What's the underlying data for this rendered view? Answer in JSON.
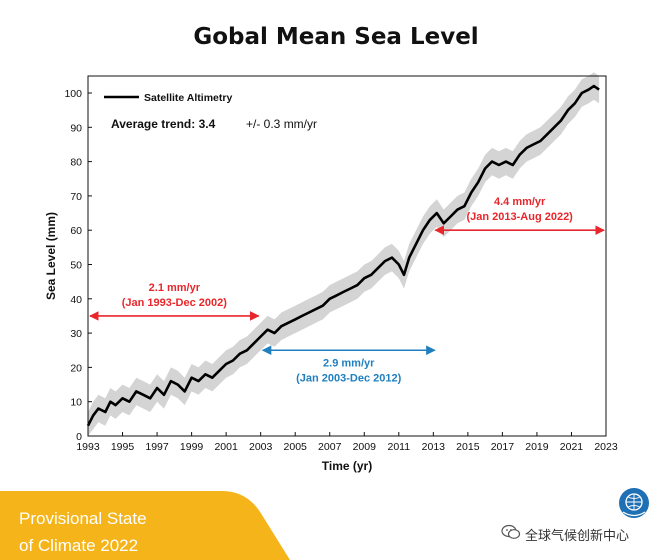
{
  "title": "Gobal Mean Sea Level",
  "legend": {
    "label": "Satellite Altimetry",
    "trend_label": "Average trend: 3.4",
    "trend_error": "+/- 0.3 mm/yr"
  },
  "annotations": [
    {
      "rate": "2.1 mm/yr",
      "period": "(Jan 1993-Dec 2002)",
      "x_start": 1993,
      "x_end": 2003,
      "y": 35,
      "color": "#e8262b"
    },
    {
      "rate": "2.9 mm/yr",
      "period": "(Jan 2003-Dec 2012)",
      "x_start": 2003,
      "x_end": 2013.2,
      "y": 25,
      "color": "#1f7fbf"
    },
    {
      "rate": "4.4 mm/yr",
      "period": "(Jan 2013-Aug 2022)",
      "x_start": 2013,
      "x_end": 2023,
      "y": 60,
      "color": "#e8262b"
    }
  ],
  "chart_data": {
    "type": "line",
    "title": "Gobal Mean Sea Level",
    "xlabel": "Time (yr)",
    "ylabel": "Sea Level (mm)",
    "xlim": [
      1993,
      2023
    ],
    "ylim": [
      0,
      105
    ],
    "xticks": [
      1993,
      1995,
      1997,
      1999,
      2001,
      2003,
      2005,
      2007,
      2009,
      2011,
      2013,
      2015,
      2017,
      2019,
      2021,
      2023
    ],
    "yticks": [
      0,
      10,
      20,
      30,
      40,
      50,
      60,
      70,
      80,
      90,
      100
    ],
    "uncertainty_band_mm": 4,
    "series": [
      {
        "name": "Satellite Altimetry",
        "color": "#000000",
        "points": [
          [
            1993.0,
            3
          ],
          [
            1993.3,
            6
          ],
          [
            1993.6,
            8
          ],
          [
            1994.0,
            7
          ],
          [
            1994.3,
            10
          ],
          [
            1994.6,
            9
          ],
          [
            1995.0,
            11
          ],
          [
            1995.4,
            10
          ],
          [
            1995.8,
            13
          ],
          [
            1996.2,
            12
          ],
          [
            1996.6,
            11
          ],
          [
            1997.0,
            14
          ],
          [
            1997.4,
            12
          ],
          [
            1997.8,
            16
          ],
          [
            1998.2,
            15
          ],
          [
            1998.6,
            13
          ],
          [
            1999.0,
            17
          ],
          [
            1999.4,
            16
          ],
          [
            1999.8,
            18
          ],
          [
            2000.2,
            17
          ],
          [
            2000.6,
            19
          ],
          [
            2001.0,
            21
          ],
          [
            2001.4,
            22
          ],
          [
            2001.8,
            24
          ],
          [
            2002.2,
            25
          ],
          [
            2002.6,
            27
          ],
          [
            2003.0,
            29
          ],
          [
            2003.4,
            31
          ],
          [
            2003.8,
            30
          ],
          [
            2004.2,
            32
          ],
          [
            2004.6,
            33
          ],
          [
            2005.0,
            34
          ],
          [
            2005.4,
            35
          ],
          [
            2005.8,
            36
          ],
          [
            2006.2,
            37
          ],
          [
            2006.6,
            38
          ],
          [
            2007.0,
            40
          ],
          [
            2007.4,
            41
          ],
          [
            2007.8,
            42
          ],
          [
            2008.2,
            43
          ],
          [
            2008.6,
            44
          ],
          [
            2009.0,
            46
          ],
          [
            2009.4,
            47
          ],
          [
            2009.8,
            49
          ],
          [
            2010.2,
            51
          ],
          [
            2010.6,
            52
          ],
          [
            2011.0,
            50
          ],
          [
            2011.3,
            47
          ],
          [
            2011.6,
            52
          ],
          [
            2012.0,
            56
          ],
          [
            2012.4,
            60
          ],
          [
            2012.8,
            63
          ],
          [
            2013.2,
            65
          ],
          [
            2013.6,
            62
          ],
          [
            2014.0,
            64
          ],
          [
            2014.4,
            66
          ],
          [
            2014.8,
            67
          ],
          [
            2015.2,
            71
          ],
          [
            2015.6,
            74
          ],
          [
            2016.0,
            78
          ],
          [
            2016.4,
            80
          ],
          [
            2016.8,
            79
          ],
          [
            2017.2,
            80
          ],
          [
            2017.6,
            79
          ],
          [
            2018.0,
            82
          ],
          [
            2018.4,
            84
          ],
          [
            2018.8,
            85
          ],
          [
            2019.2,
            86
          ],
          [
            2019.6,
            88
          ],
          [
            2020.0,
            90
          ],
          [
            2020.4,
            92
          ],
          [
            2020.8,
            95
          ],
          [
            2021.2,
            97
          ],
          [
            2021.6,
            100
          ],
          [
            2022.0,
            101
          ],
          [
            2022.3,
            102
          ],
          [
            2022.6,
            101
          ]
        ]
      }
    ]
  },
  "footer": {
    "line1": "Provisional State",
    "line2": "of Climate 2022",
    "banner_color": "#f4b41a",
    "brand": "全球气候创新中心"
  }
}
